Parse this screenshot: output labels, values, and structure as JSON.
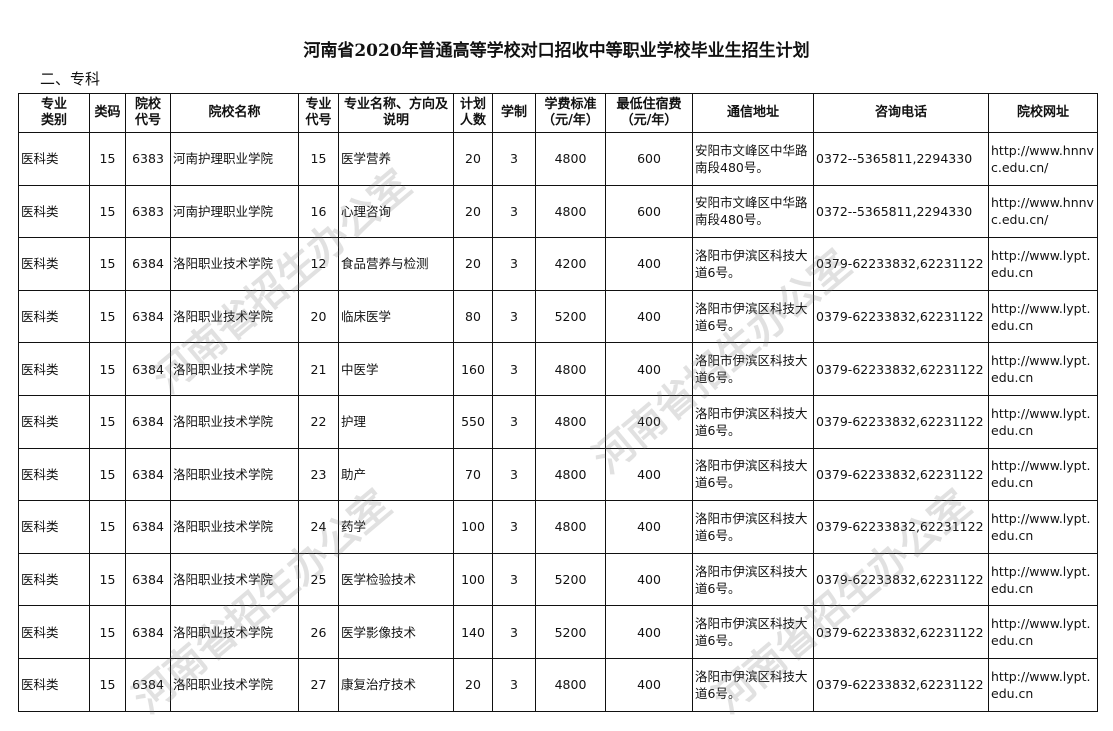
{
  "title": "河南省2020年普通高等学校对口招收中等职业学校毕业生招生计划",
  "section": "二、专科",
  "watermark": "河南省招生办公室",
  "headers": [
    "专业\n类别",
    "类码",
    "院校\n代号",
    "院校名称",
    "专业\n代号",
    "专业名称、方向及\n说明",
    "计划\n人数",
    "学制",
    "学费标准\n（元/年）",
    "最低住宿费\n（元/年）",
    "通信地址",
    "咨询电话",
    "院校网址"
  ],
  "rows": [
    [
      "医科类",
      "15",
      "6383",
      "河南护理职业学院",
      "15",
      "医学营养",
      "20",
      "3",
      "4800",
      "600",
      "安阳市文峰区中华路南段480号。",
      "0372--5365811,2294330",
      "http://www.hnnvc.edu.cn/"
    ],
    [
      "医科类",
      "15",
      "6383",
      "河南护理职业学院",
      "16",
      "心理咨询",
      "20",
      "3",
      "4800",
      "600",
      "安阳市文峰区中华路南段480号。",
      "0372--5365811,2294330",
      "http://www.hnnvc.edu.cn/"
    ],
    [
      "医科类",
      "15",
      "6384",
      "洛阳职业技术学院",
      "12",
      "食品营养与检测",
      "20",
      "3",
      "4200",
      "400",
      "洛阳市伊滨区科技大道6号。",
      "0379-62233832,62231122",
      "http://www.lypt.edu.cn"
    ],
    [
      "医科类",
      "15",
      "6384",
      "洛阳职业技术学院",
      "20",
      "临床医学",
      "80",
      "3",
      "5200",
      "400",
      "洛阳市伊滨区科技大道6号。",
      "0379-62233832,62231122",
      "http://www.lypt.edu.cn"
    ],
    [
      "医科类",
      "15",
      "6384",
      "洛阳职业技术学院",
      "21",
      "中医学",
      "160",
      "3",
      "4800",
      "400",
      "洛阳市伊滨区科技大道6号。",
      "0379-62233832,62231122",
      "http://www.lypt.edu.cn"
    ],
    [
      "医科类",
      "15",
      "6384",
      "洛阳职业技术学院",
      "22",
      "护理",
      "550",
      "3",
      "4800",
      "400",
      "洛阳市伊滨区科技大道6号。",
      "0379-62233832,62231122",
      "http://www.lypt.edu.cn"
    ],
    [
      "医科类",
      "15",
      "6384",
      "洛阳职业技术学院",
      "23",
      "助产",
      "70",
      "3",
      "4800",
      "400",
      "洛阳市伊滨区科技大道6号。",
      "0379-62233832,62231122",
      "http://www.lypt.edu.cn"
    ],
    [
      "医科类",
      "15",
      "6384",
      "洛阳职业技术学院",
      "24",
      "药学",
      "100",
      "3",
      "4800",
      "400",
      "洛阳市伊滨区科技大道6号。",
      "0379-62233832,62231122",
      "http://www.lypt.edu.cn"
    ],
    [
      "医科类",
      "15",
      "6384",
      "洛阳职业技术学院",
      "25",
      "医学检验技术",
      "100",
      "3",
      "5200",
      "400",
      "洛阳市伊滨区科技大道6号。",
      "0379-62233832,62231122",
      "http://www.lypt.edu.cn"
    ],
    [
      "医科类",
      "15",
      "6384",
      "洛阳职业技术学院",
      "26",
      "医学影像技术",
      "140",
      "3",
      "5200",
      "400",
      "洛阳市伊滨区科技大道6号。",
      "0379-62233832,62231122",
      "http://www.lypt.edu.cn"
    ],
    [
      "医科类",
      "15",
      "6384",
      "洛阳职业技术学院",
      "27",
      "康复治疗技术",
      "20",
      "3",
      "4800",
      "400",
      "洛阳市伊滨区科技大道6号。",
      "0379-62233832,62231122",
      "http://www.lypt.edu.cn"
    ]
  ]
}
